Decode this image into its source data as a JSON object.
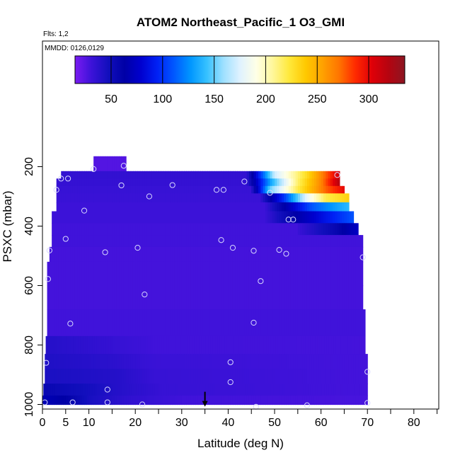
{
  "chart_data": {
    "type": "heatmap",
    "title": "ATOM2 Northeast_Pacific_1 O3_GMI",
    "annotations": {
      "flights": "Flts: 1,2",
      "dates": "MMDD: 0126,0129"
    },
    "xlabel": "Latitude (deg N)",
    "ylabel": "PSXC (mbar)",
    "xlim": [
      0,
      85
    ],
    "ylim": [
      1000,
      100
    ],
    "y_reversed": true,
    "x_ticks": [
      0,
      5,
      10,
      20,
      30,
      40,
      50,
      60,
      70,
      80
    ],
    "x_minor_ticks": [
      15,
      25,
      35,
      45,
      55,
      65,
      75,
      85
    ],
    "y_ticks": [
      200,
      400,
      600,
      800,
      1000
    ],
    "colorbar": {
      "range": [
        15,
        335
      ],
      "ticks": [
        50,
        100,
        150,
        200,
        250,
        300
      ],
      "colors": [
        "#7a1bf2",
        "#3c12d8",
        "#120fbd",
        "#0000a6",
        "#0000cf",
        "#0021f5",
        "#0058ff",
        "#0096ff",
        "#36c1ff",
        "#9ee0ff",
        "#dff2ff",
        "#ffffe6",
        "#fff79a",
        "#ffe83a",
        "#ffc800",
        "#ffa200",
        "#ff7500",
        "#ff2a00",
        "#e00008",
        "#b50410",
        "#8c1622"
      ]
    },
    "layers": [
      {
        "p": [
          165,
          215
        ],
        "x": [
          11,
          18
        ],
        "v": 25
      },
      {
        "p": [
          215,
          240
        ],
        "x": [
          4,
          64
        ],
        "v": 35,
        "ramp": [
          [
            44,
            35
          ],
          [
            50,
            170
          ],
          [
            57,
            230
          ],
          [
            64,
            310
          ]
        ]
      },
      {
        "p": [
          240,
          265
        ],
        "x": [
          3,
          64
        ],
        "v": 34,
        "ramp": [
          [
            44,
            35
          ],
          [
            49,
            130
          ],
          [
            55,
            215
          ],
          [
            60,
            265
          ],
          [
            64,
            320
          ]
        ]
      },
      {
        "p": [
          265,
          290
        ],
        "x": [
          3,
          65
        ],
        "v": 33,
        "ramp": [
          [
            45,
            35
          ],
          [
            49,
            150
          ],
          [
            55,
            220
          ],
          [
            61,
            275
          ],
          [
            65,
            300
          ]
        ]
      },
      {
        "p": [
          290,
          320
        ],
        "x": [
          3,
          66
        ],
        "v": 32,
        "ramp": [
          [
            47,
            34
          ],
          [
            52,
            100
          ],
          [
            57,
            180
          ],
          [
            61,
            220
          ],
          [
            66,
            235
          ]
        ]
      },
      {
        "p": [
          320,
          350
        ],
        "x": [
          3,
          66
        ],
        "v": 31,
        "ramp": [
          [
            48,
            32
          ],
          [
            53,
            70
          ],
          [
            58,
            110
          ],
          [
            63,
            130
          ],
          [
            66,
            140
          ]
        ]
      },
      {
        "p": [
          350,
          390
        ],
        "x": [
          2,
          67
        ],
        "v": 31,
        "ramp": [
          [
            48,
            32
          ],
          [
            55,
            65
          ],
          [
            60,
            85
          ],
          [
            67,
            110
          ]
        ]
      },
      {
        "p": [
          390,
          430
        ],
        "x": [
          2,
          68
        ],
        "v": 30,
        "ramp": [
          [
            55,
            32
          ],
          [
            63,
            55
          ],
          [
            68,
            75
          ]
        ]
      },
      {
        "p": [
          430,
          470
        ],
        "x": [
          2,
          69
        ],
        "v": 30
      },
      {
        "p": [
          470,
          520
        ],
        "x": [
          1.5,
          69
        ],
        "v": 29
      },
      {
        "p": [
          520,
          600
        ],
        "x": [
          1,
          69
        ],
        "v": 29
      },
      {
        "p": [
          600,
          680
        ],
        "x": [
          1,
          69
        ],
        "v": 29
      },
      {
        "p": [
          680,
          770
        ],
        "x": [
          1,
          69.5
        ],
        "v": 30
      },
      {
        "p": [
          770,
          830
        ],
        "x": [
          0.7,
          69.5
        ],
        "v": 32,
        "ramp": [
          [
            0.7,
            40
          ],
          [
            10,
            36
          ],
          [
            24,
            30
          ],
          [
            69.5,
            29
          ]
        ]
      },
      {
        "p": [
          830,
          880
        ],
        "x": [
          0.5,
          70
        ],
        "v": 33,
        "ramp": [
          [
            0.5,
            42
          ],
          [
            14,
            38
          ],
          [
            24,
            32
          ],
          [
            69.5,
            29
          ]
        ]
      },
      {
        "p": [
          880,
          930
        ],
        "x": [
          0.5,
          70
        ],
        "v": 34,
        "ramp": [
          [
            0.5,
            44
          ],
          [
            16,
            40
          ],
          [
            24,
            33
          ],
          [
            69.5,
            29
          ]
        ]
      },
      {
        "p": [
          930,
          970
        ],
        "x": [
          0.2,
          70
        ],
        "v": 35,
        "ramp": [
          [
            0.2,
            55
          ],
          [
            8,
            48
          ],
          [
            16,
            40
          ],
          [
            26,
            33
          ],
          [
            69.5,
            29
          ]
        ]
      },
      {
        "p": [
          970,
          1000
        ],
        "x": [
          0,
          70
        ],
        "v": 36,
        "ramp": [
          [
            0,
            70
          ],
          [
            5,
            62
          ],
          [
            10,
            45
          ],
          [
            18,
            36
          ],
          [
            30,
            30
          ],
          [
            69.5,
            28
          ]
        ]
      }
    ],
    "observations": [
      [
        11,
        208
      ],
      [
        17.5,
        197
      ],
      [
        4,
        240
      ],
      [
        5.5,
        240
      ],
      [
        3,
        278
      ],
      [
        17,
        263
      ],
      [
        23,
        300
      ],
      [
        28,
        262
      ],
      [
        9,
        348
      ],
      [
        37.5,
        278
      ],
      [
        39,
        278
      ],
      [
        43.5,
        250
      ],
      [
        49,
        288
      ],
      [
        53,
        378
      ],
      [
        54,
        378
      ],
      [
        63.5,
        228
      ],
      [
        5,
        443
      ],
      [
        13.5,
        488
      ],
      [
        20.5,
        473
      ],
      [
        38.5,
        447
      ],
      [
        41,
        473
      ],
      [
        45.5,
        483
      ],
      [
        51,
        480
      ],
      [
        52.5,
        493
      ],
      [
        69,
        505
      ],
      [
        1.5,
        482
      ],
      [
        1.2,
        578
      ],
      [
        22,
        630
      ],
      [
        47,
        585
      ],
      [
        6,
        728
      ],
      [
        45.5,
        725
      ],
      [
        0.8,
        860
      ],
      [
        40.5,
        858
      ],
      [
        40.5,
        925
      ],
      [
        70,
        890
      ],
      [
        14,
        950
      ],
      [
        14,
        993
      ],
      [
        6.5,
        993
      ],
      [
        0.5,
        993
      ],
      [
        21.5,
        1000
      ],
      [
        46,
        1008
      ],
      [
        57,
        1003
      ],
      [
        70,
        995
      ]
    ],
    "marker": {
      "x": 35,
      "p": 1005
    }
  }
}
